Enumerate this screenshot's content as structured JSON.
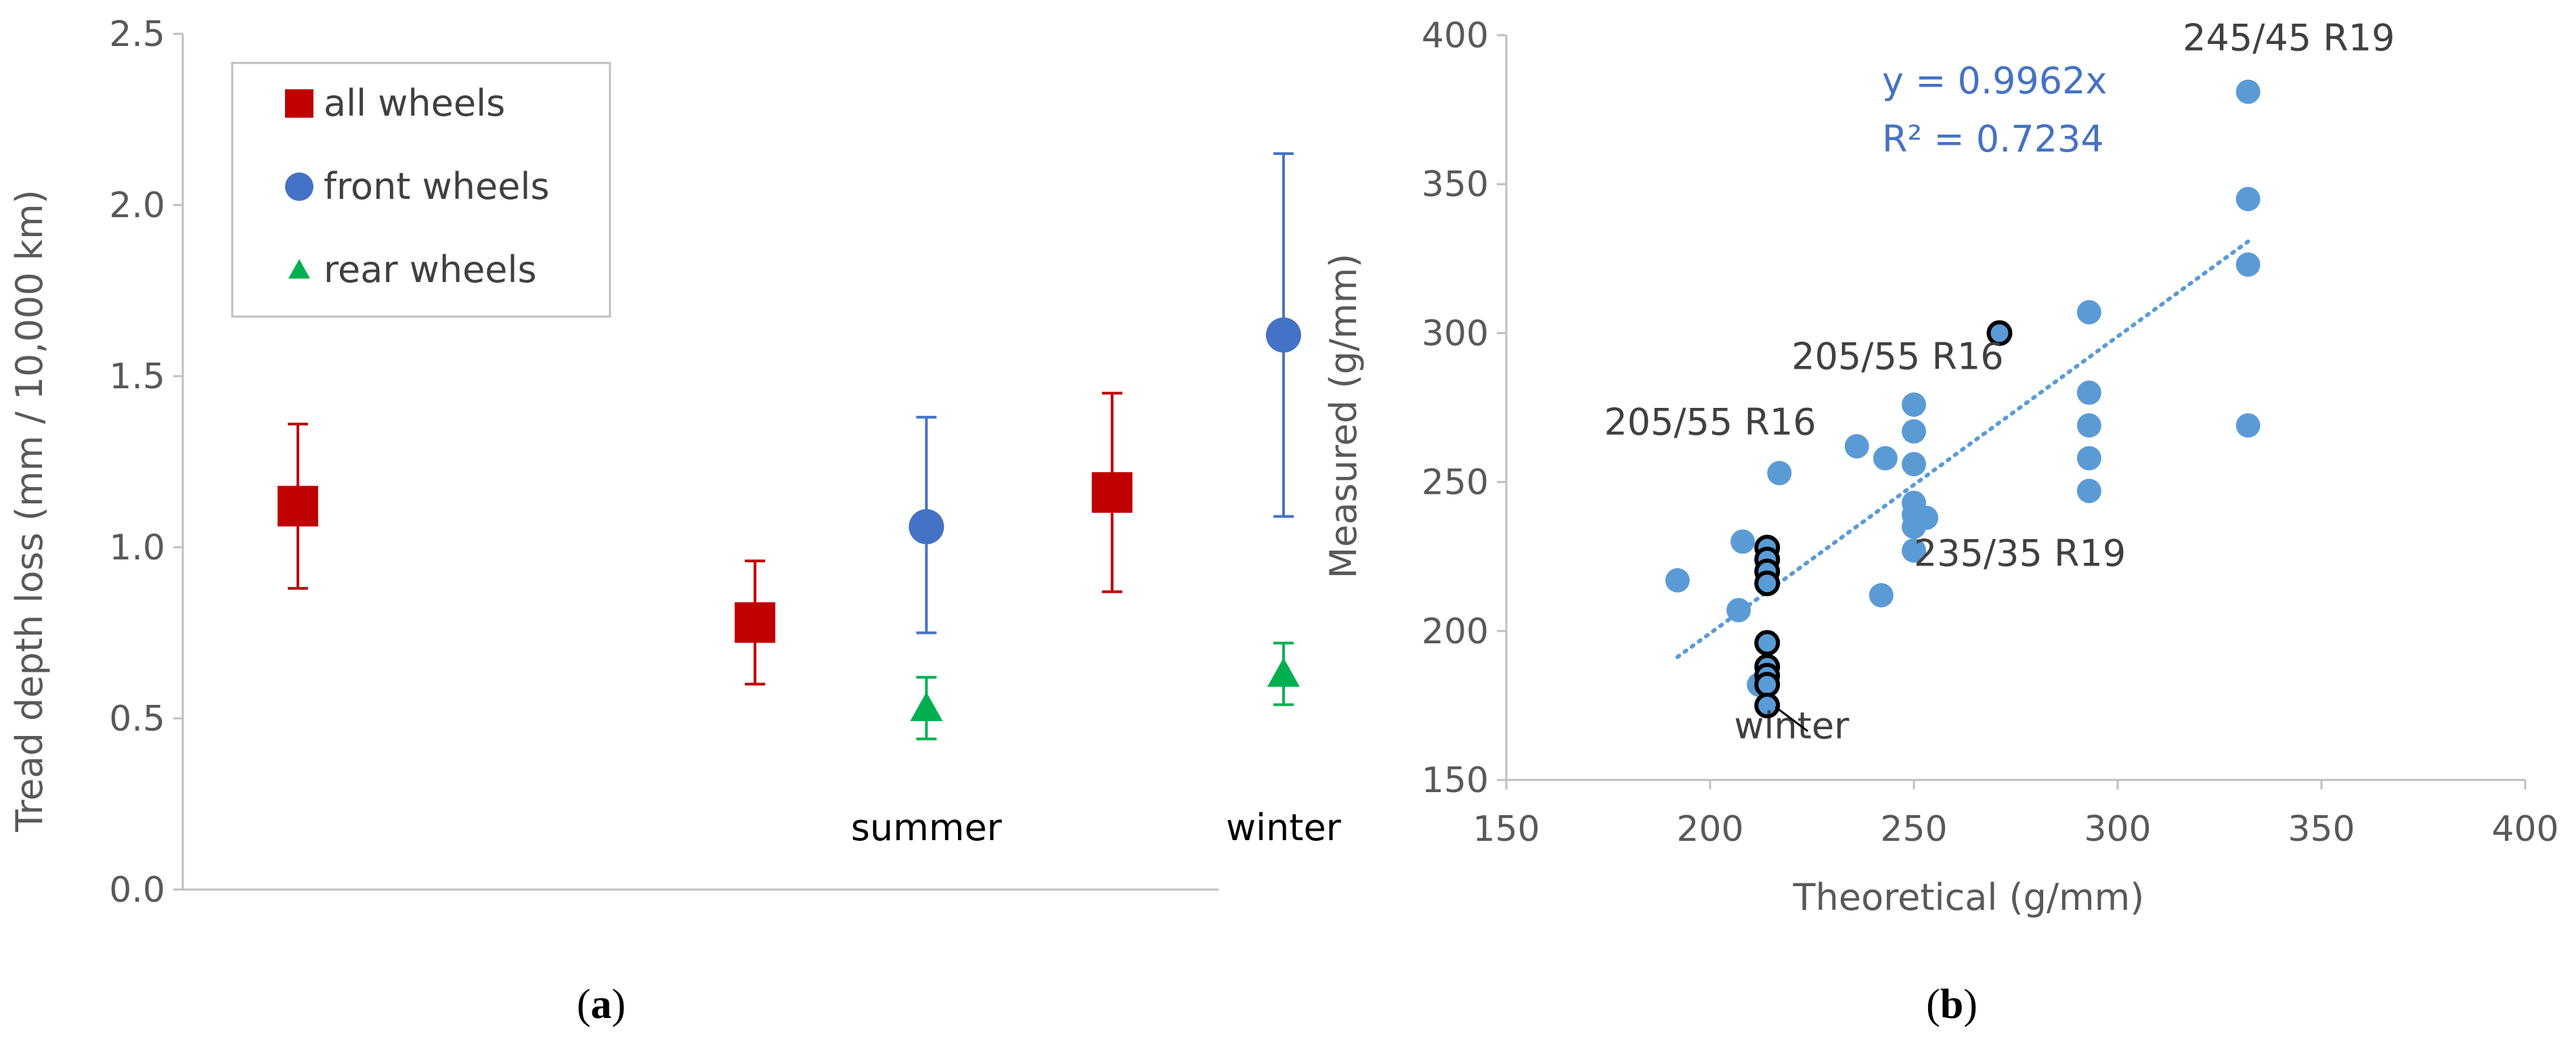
{
  "chart_data": [
    {
      "id": "a",
      "type": "scatter",
      "caption_letter": "a",
      "caption_open": "(",
      "caption_close": ")",
      "ylabel": "Tread depth loss (mm / 10,000 km)",
      "ylim": [
        0.0,
        2.5
      ],
      "yticks": [
        "0.0",
        "0.5",
        "1.0",
        "1.5",
        "2.0",
        "2.5"
      ],
      "grid": false,
      "legend_position": "top-left",
      "group_labels": [
        {
          "text": "summer",
          "x": 2.2
        },
        {
          "text": "winter",
          "x": 3.45
        }
      ],
      "series": [
        {
          "name": "all wheels",
          "marker": "square",
          "color": "#C00000",
          "points": [
            {
              "x": 0,
              "y": 1.12,
              "low": 0.88,
              "high": 1.36
            },
            {
              "x": 1.6,
              "y": 0.78,
              "low": 0.6,
              "high": 0.96
            },
            {
              "x": 2.85,
              "y": 1.16,
              "low": 0.87,
              "high": 1.45
            }
          ]
        },
        {
          "name": "front wheels",
          "marker": "circle",
          "color": "#4472C4",
          "points": [
            {
              "x": 2.2,
              "y": 1.06,
              "low": 0.75,
              "high": 1.38
            },
            {
              "x": 3.45,
              "y": 1.62,
              "low": 1.09,
              "high": 2.15
            }
          ]
        },
        {
          "name": "rear wheels",
          "marker": "triangle",
          "color": "#00B050",
          "points": [
            {
              "x": 2.2,
              "y": 0.53,
              "low": 0.44,
              "high": 0.62
            },
            {
              "x": 3.45,
              "y": 0.63,
              "low": 0.54,
              "high": 0.72
            }
          ]
        }
      ]
    },
    {
      "id": "b",
      "type": "scatter",
      "caption_letter": "b",
      "caption_open": "(",
      "caption_close": ")",
      "xlabel": "Theoretical (g/mm)",
      "ylabel": "Measured (g/mm)",
      "xlim": [
        150,
        400
      ],
      "ylim": [
        150,
        400
      ],
      "xticks": [
        "150",
        "200",
        "250",
        "300",
        "350",
        "400"
      ],
      "yticks": [
        "150",
        "200",
        "250",
        "300",
        "350",
        "400"
      ],
      "grid": false,
      "point_color": "#5B9BD5",
      "winter_edge_color": "#000000",
      "points": [
        [
          192,
          217
        ],
        [
          207,
          207
        ],
        [
          208,
          230
        ],
        [
          212,
          182
        ],
        [
          217,
          253
        ],
        [
          236,
          262
        ],
        [
          242,
          212
        ],
        [
          243,
          258
        ],
        [
          250,
          276
        ],
        [
          250,
          267
        ],
        [
          250,
          256
        ],
        [
          250,
          243
        ],
        [
          250,
          239
        ],
        [
          250,
          235
        ],
        [
          250,
          227
        ],
        [
          253,
          238
        ],
        [
          293,
          307
        ],
        [
          293,
          280
        ],
        [
          293,
          269
        ],
        [
          293,
          258
        ],
        [
          293,
          247
        ],
        [
          332,
          381
        ],
        [
          332,
          345
        ],
        [
          332,
          323
        ],
        [
          332,
          269
        ]
      ],
      "winter_points": [
        [
          214,
          228
        ],
        [
          214,
          224
        ],
        [
          214,
          220
        ],
        [
          214,
          216
        ],
        [
          214,
          196
        ],
        [
          214,
          188
        ],
        [
          214,
          185
        ],
        [
          214,
          182
        ],
        [
          214,
          175
        ],
        [
          271,
          300
        ]
      ],
      "trendline": {
        "slope": 0.9962,
        "x_from": 192,
        "x_to": 332,
        "color": "#5B9BD5",
        "style": "dotted"
      },
      "equation": "y = 0.9962x",
      "r_squared": "R² = 0.7234",
      "annotations": [
        {
          "text": "245/45 R19",
          "x": 342,
          "y": 399
        },
        {
          "text": "205/55 R16",
          "x": 246,
          "y": 292
        },
        {
          "text": "205/55 R16",
          "x": 200,
          "y": 270
        },
        {
          "text": "235/35 R19",
          "x": 276,
          "y": 226
        },
        {
          "text": "winter",
          "x": 220,
          "y": 168
        }
      ]
    }
  ]
}
